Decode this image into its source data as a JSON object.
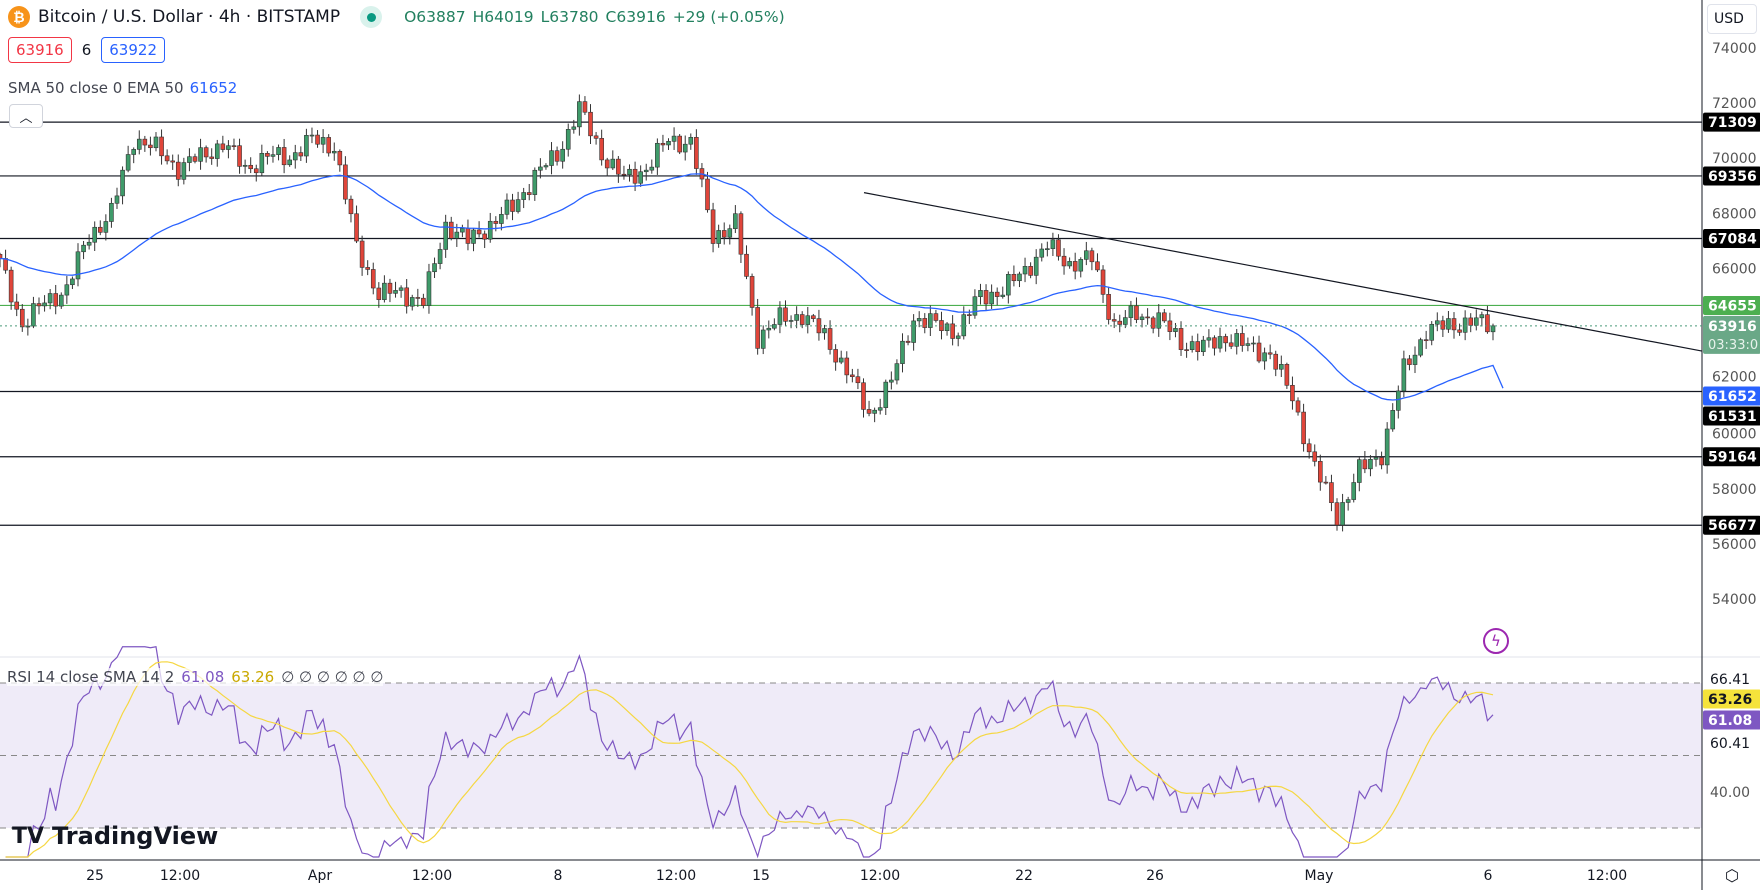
{
  "header": {
    "symbol": "Bitcoin / U.S. Dollar · 4h · BITSTAMP",
    "icon": "bitcoin-icon",
    "open": "O63887",
    "high": "H64019",
    "low": "L63780",
    "close": "C63916",
    "change": "+29 (+0.05%)"
  },
  "trade": {
    "sell": "63916",
    "spread": "6",
    "buy": "63922"
  },
  "indicator": {
    "label": "SMA 50 close 0 EMA 50",
    "value": "61652"
  },
  "rsi_header": {
    "label": "RSI 14 close SMA 14 2",
    "rsi": "61.08",
    "sma": "63.26",
    "extra": "∅ ∅ ∅ ∅ ∅ ∅"
  },
  "currency": "USD",
  "countdown": "03:33:0",
  "brand": "TradingView",
  "colors": {
    "up": "#3f9b6a",
    "down": "#e0453a",
    "ema": "#2962ff",
    "rsi": "#7e57c2",
    "rsi_sma": "#f5d742",
    "resistance": "#4caf50"
  },
  "chart_data": {
    "type": "candlestick",
    "price_axis": {
      "ticks": [
        "74000",
        "72000",
        "70000",
        "68000",
        "66000",
        "62000",
        "60000",
        "58000",
        "56000",
        "54000"
      ],
      "range": [
        52600,
        74900
      ]
    },
    "time_axis": {
      "labels": [
        "25",
        "12:00",
        "Apr",
        "12:00",
        "8",
        "12:00",
        "15",
        "12:00",
        "22",
        "26",
        "May",
        "6",
        "12:00"
      ]
    },
    "approx_closes": [
      66180,
      63980,
      64750,
      65280,
      67200,
      68010,
      70740,
      70330,
      69640,
      70050,
      70540,
      69640,
      70050,
      70050,
      70660,
      70460,
      66790,
      65040,
      65160,
      64750,
      67600,
      66990,
      67600,
      68220,
      69360,
      70130,
      71800,
      70170,
      69230,
      69640,
      70660,
      70580,
      67200,
      67600,
      63530,
      64140,
      64340,
      63530,
      62310,
      60680,
      61900,
      64220,
      63940,
      63730,
      65040,
      65160,
      65980,
      66790,
      66180,
      66340,
      63940,
      64340,
      64140,
      63330,
      63120,
      63530,
      63120,
      62920,
      61290,
      58770,
      57020,
      58650,
      59300,
      62310,
      63730,
      63940,
      64060,
      63916
    ],
    "levels": [
      {
        "price": 71309,
        "label": "71309"
      },
      {
        "price": 69356,
        "label": "69356"
      },
      {
        "price": 67084,
        "label": "67084"
      },
      {
        "price": 64655,
        "label": "64655",
        "color": "green"
      },
      {
        "price": 61531,
        "label": "61531"
      },
      {
        "price": 59164,
        "label": "59164"
      },
      {
        "price": 56677,
        "label": "56677"
      }
    ],
    "current_price": {
      "price": 63916,
      "label": "63916"
    },
    "ema50": {
      "price": 61652,
      "label": "61652"
    },
    "trendline": {
      "from_price": 68750,
      "to_price": 63000
    },
    "rsi": {
      "bands": [
        70,
        50,
        30
      ],
      "labels": [
        "66.41",
        "63.26",
        "61.08",
        "60.41",
        "40.00"
      ],
      "last_rsi": 61.08,
      "last_sma": 63.26
    }
  }
}
